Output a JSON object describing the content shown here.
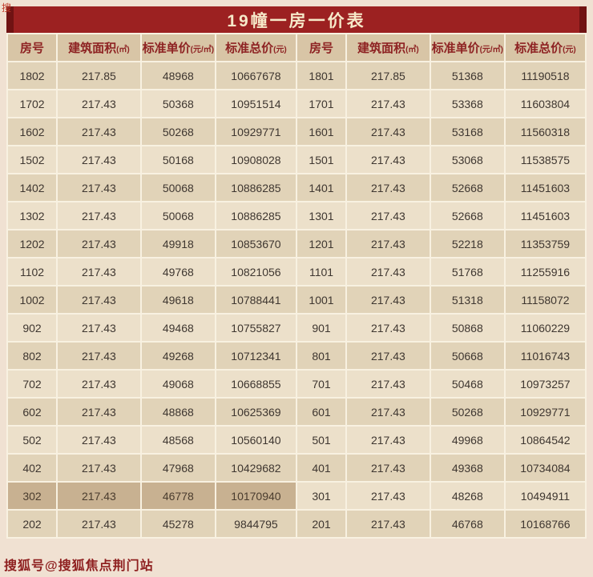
{
  "title": "19幢一房一价表",
  "corner_watermark": "搜",
  "bottom_watermark": "搜狐号@搜狐焦点荆门站",
  "colors": {
    "title_bar": "#9c2121",
    "title_text": "#f6e9c9",
    "header_bg": "#d8c5a6",
    "header_text": "#8e2323",
    "row_light": "#ece0ca",
    "row_dark": "#e1d3b8",
    "highlight_row": "#c8b191",
    "page_bg": "#f0e1d2",
    "grid_line": "#f8f1e1"
  },
  "table": {
    "headers": [
      {
        "label": "房号",
        "unit": ""
      },
      {
        "label": "建筑面积",
        "unit": "(㎡)"
      },
      {
        "label": "标准单价",
        "unit": "(元/㎡)"
      },
      {
        "label": "标准总价",
        "unit": "(元)"
      },
      {
        "label": "房号",
        "unit": ""
      },
      {
        "label": "建筑面积",
        "unit": "(㎡)"
      },
      {
        "label": "标准单价",
        "unit": "(元/㎡)"
      },
      {
        "label": "标准总价",
        "unit": "(元)"
      }
    ],
    "highlight_room": "302",
    "rows": [
      [
        "1802",
        "217.85",
        "48968",
        "10667678",
        "1801",
        "217.85",
        "51368",
        "11190518"
      ],
      [
        "1702",
        "217.43",
        "50368",
        "10951514",
        "1701",
        "217.43",
        "53368",
        "11603804"
      ],
      [
        "1602",
        "217.43",
        "50268",
        "10929771",
        "1601",
        "217.43",
        "53168",
        "11560318"
      ],
      [
        "1502",
        "217.43",
        "50168",
        "10908028",
        "1501",
        "217.43",
        "53068",
        "11538575"
      ],
      [
        "1402",
        "217.43",
        "50068",
        "10886285",
        "1401",
        "217.43",
        "52668",
        "11451603"
      ],
      [
        "1302",
        "217.43",
        "50068",
        "10886285",
        "1301",
        "217.43",
        "52668",
        "11451603"
      ],
      [
        "1202",
        "217.43",
        "49918",
        "10853670",
        "1201",
        "217.43",
        "52218",
        "11353759"
      ],
      [
        "1102",
        "217.43",
        "49768",
        "10821056",
        "1101",
        "217.43",
        "51768",
        "11255916"
      ],
      [
        "1002",
        "217.43",
        "49618",
        "10788441",
        "1001",
        "217.43",
        "51318",
        "11158072"
      ],
      [
        "902",
        "217.43",
        "49468",
        "10755827",
        "901",
        "217.43",
        "50868",
        "11060229"
      ],
      [
        "802",
        "217.43",
        "49268",
        "10712341",
        "801",
        "217.43",
        "50668",
        "11016743"
      ],
      [
        "702",
        "217.43",
        "49068",
        "10668855",
        "701",
        "217.43",
        "50468",
        "10973257"
      ],
      [
        "602",
        "217.43",
        "48868",
        "10625369",
        "601",
        "217.43",
        "50268",
        "10929771"
      ],
      [
        "502",
        "217.43",
        "48568",
        "10560140",
        "501",
        "217.43",
        "49968",
        "10864542"
      ],
      [
        "402",
        "217.43",
        "47968",
        "10429682",
        "401",
        "217.43",
        "49368",
        "10734084"
      ],
      [
        "302",
        "217.43",
        "46778",
        "10170940",
        "301",
        "217.43",
        "48268",
        "10494911"
      ],
      [
        "202",
        "217.43",
        "45278",
        "9844795",
        "201",
        "217.43",
        "46768",
        "10168766"
      ]
    ]
  }
}
